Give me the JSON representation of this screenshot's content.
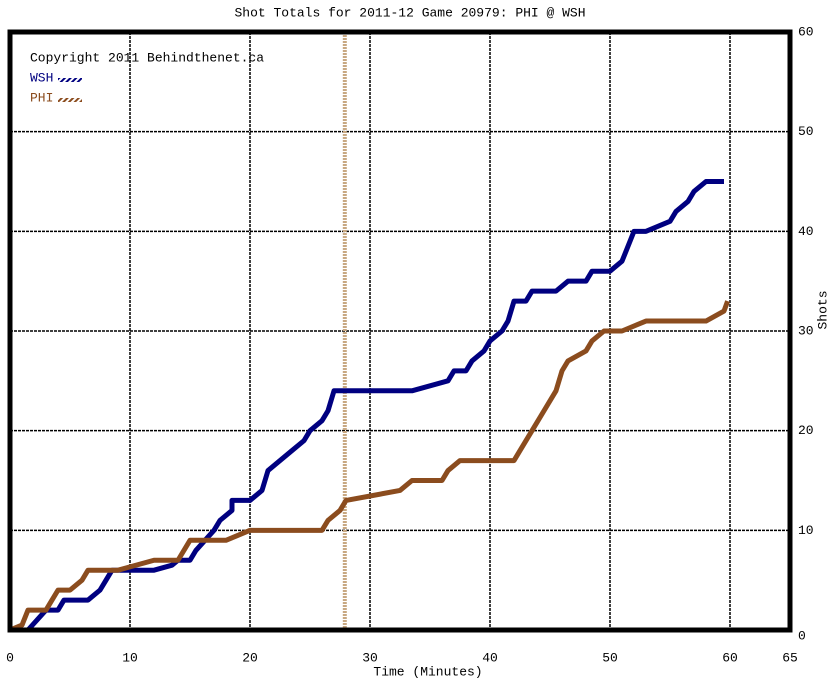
{
  "chart_data": {
    "type": "line",
    "title": "Shot Totals for 2011-12 Game 20979: PHI @ WSH",
    "xlabel": "Time (Minutes)",
    "ylabel": "Shots",
    "annotation": "Copyright 2011 Behindthenet.ca",
    "xlim": [
      0,
      65
    ],
    "ylim": [
      0,
      60
    ],
    "xticks": [
      0,
      10,
      20,
      30,
      40,
      50,
      60,
      65
    ],
    "yticks": [
      0,
      10,
      20,
      30,
      40,
      50,
      60
    ],
    "grid": true,
    "vline_x": 27.9,
    "vline_color": "#c8a882",
    "series": [
      {
        "name": "WSH",
        "color": "#000080",
        "x": [
          0,
          1.5,
          3,
          4,
          4.5,
          6.5,
          7.5,
          8,
          8.5,
          12,
          13.5,
          14,
          15,
          15.5,
          17,
          17.5,
          18.5,
          18.5,
          20,
          21,
          21.5,
          22.5,
          23.5,
          24.5,
          25,
          26,
          26.5,
          27,
          33.5,
          36.5,
          37,
          38,
          38.5,
          39.5,
          40,
          41,
          41.5,
          42,
          43,
          43.5,
          45.5,
          46.5,
          48,
          48.5,
          50,
          51,
          52,
          53,
          55,
          55.5,
          56.5,
          57,
          58,
          59.5
        ],
        "values": [
          0,
          0,
          2,
          2,
          3,
          3,
          4,
          5,
          6,
          6,
          6.5,
          7,
          7,
          8,
          10,
          11,
          12,
          13,
          13,
          14,
          16,
          17,
          18,
          19,
          20,
          21,
          22,
          24,
          24,
          25,
          26,
          26,
          27,
          28,
          29,
          30,
          31,
          33,
          33,
          34,
          34,
          35,
          35,
          36,
          36,
          37,
          40,
          40,
          41,
          42,
          43,
          44,
          45,
          45
        ]
      },
      {
        "name": "PHI",
        "color": "#8b4c1e",
        "x": [
          0,
          1,
          1.5,
          3,
          3.5,
          4,
          5,
          6,
          6.5,
          9,
          12,
          14,
          15,
          18,
          20,
          26,
          26.5,
          27.5,
          28,
          32.5,
          33.5,
          36,
          36.5,
          37.5,
          42,
          42.5,
          43.5,
          44.5,
          45.5,
          46,
          46.5,
          48,
          48.5,
          49.5,
          51,
          53,
          58,
          59.5,
          59.8
        ],
        "values": [
          0,
          0.5,
          2,
          2,
          3,
          4,
          4,
          5,
          6,
          6,
          7,
          7,
          9,
          9,
          10,
          10,
          11,
          12,
          13,
          14,
          15,
          15,
          16,
          17,
          17,
          18,
          20,
          22,
          24,
          26,
          27,
          28,
          29,
          30,
          30,
          31,
          31,
          32,
          33
        ]
      }
    ]
  }
}
